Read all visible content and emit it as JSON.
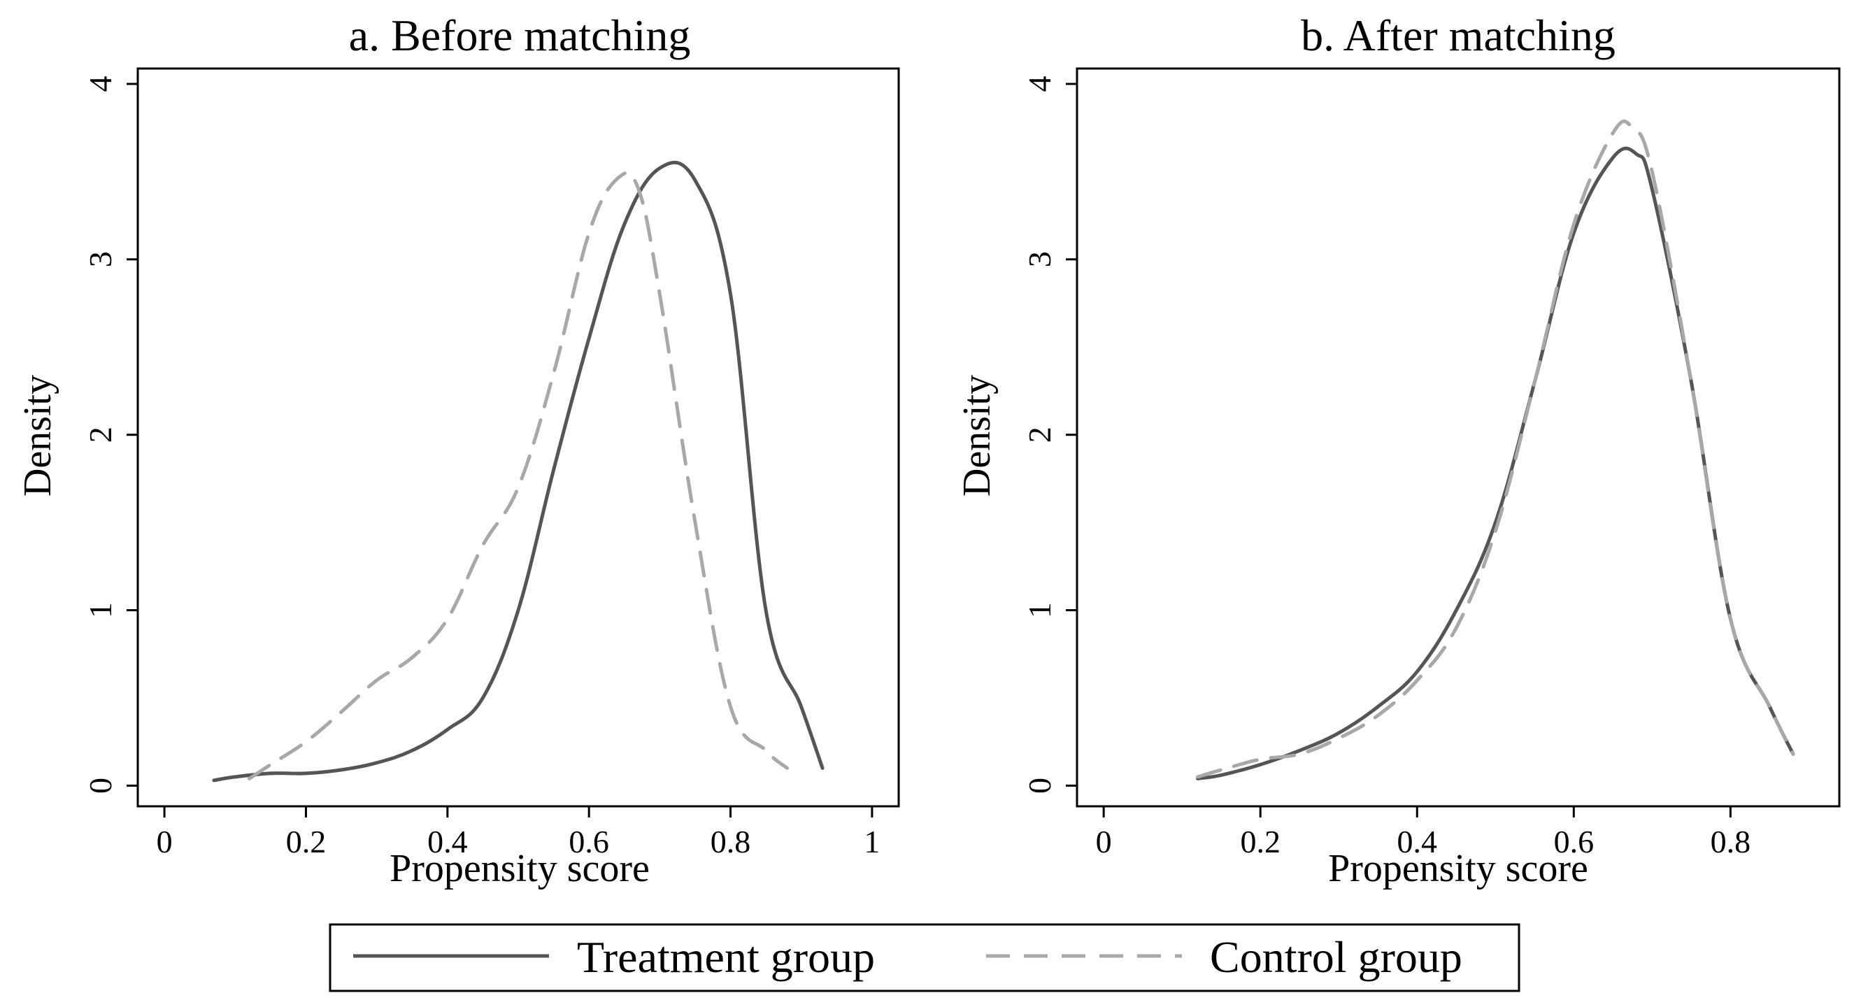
{
  "chart_data": [
    {
      "type": "line",
      "title": "a. Before matching",
      "xlabel": "Propensity score",
      "ylabel": "Density",
      "xlim": [
        0,
        1
      ],
      "ylim": [
        0,
        4
      ],
      "xticks": [
        "0",
        "0.2",
        "0.4",
        "0.6",
        "0.8",
        "1"
      ],
      "yticks": [
        "0",
        "1",
        "2",
        "3",
        "4"
      ],
      "grid": false,
      "series": [
        {
          "name": "Treatment group",
          "style": "solid",
          "color": "#555555",
          "x": [
            0.07,
            0.1,
            0.15,
            0.2,
            0.25,
            0.3,
            0.35,
            0.4,
            0.45,
            0.5,
            0.55,
            0.6,
            0.65,
            0.7,
            0.75,
            0.8,
            0.85,
            0.9,
            0.93
          ],
          "y": [
            0.03,
            0.05,
            0.07,
            0.07,
            0.09,
            0.13,
            0.2,
            0.32,
            0.5,
            1.0,
            1.8,
            2.55,
            3.2,
            3.52,
            3.45,
            2.8,
            1.0,
            0.45,
            0.1
          ]
        },
        {
          "name": "Control group",
          "style": "dashed",
          "color": "#a8a8a8",
          "x": [
            0.12,
            0.15,
            0.2,
            0.25,
            0.3,
            0.35,
            0.4,
            0.45,
            0.5,
            0.55,
            0.6,
            0.64,
            0.67,
            0.7,
            0.75,
            0.8,
            0.85,
            0.88
          ],
          "y": [
            0.04,
            0.12,
            0.25,
            0.42,
            0.6,
            0.73,
            0.95,
            1.37,
            1.7,
            2.35,
            3.15,
            3.46,
            3.4,
            2.8,
            1.5,
            0.45,
            0.2,
            0.1
          ]
        }
      ]
    },
    {
      "type": "line",
      "title": "b. After matching",
      "xlabel": "Propensity score",
      "ylabel": "Density",
      "xlim": [
        0,
        0.9
      ],
      "ylim": [
        0,
        4
      ],
      "xticks": [
        "0",
        "0.2",
        "0.4",
        "0.6",
        "0.8"
      ],
      "yticks": [
        "0",
        "1",
        "2",
        "3",
        "4"
      ],
      "grid": false,
      "series": [
        {
          "name": "Treatment group",
          "style": "solid",
          "color": "#555555",
          "x": [
            0.12,
            0.15,
            0.2,
            0.25,
            0.3,
            0.35,
            0.4,
            0.45,
            0.5,
            0.55,
            0.6,
            0.65,
            0.68,
            0.7,
            0.75,
            0.8,
            0.85,
            0.88
          ],
          "y": [
            0.04,
            0.06,
            0.12,
            0.2,
            0.3,
            0.45,
            0.65,
            1.0,
            1.5,
            2.3,
            3.15,
            3.58,
            3.6,
            3.4,
            2.3,
            0.95,
            0.45,
            0.18
          ]
        },
        {
          "name": "Control group",
          "style": "dashed",
          "color": "#a8a8a8",
          "x": [
            0.12,
            0.15,
            0.2,
            0.25,
            0.3,
            0.35,
            0.4,
            0.45,
            0.5,
            0.55,
            0.6,
            0.65,
            0.675,
            0.7,
            0.75,
            0.8,
            0.85,
            0.88
          ],
          "y": [
            0.05,
            0.09,
            0.15,
            0.18,
            0.27,
            0.4,
            0.6,
            0.9,
            1.45,
            2.3,
            3.2,
            3.72,
            3.75,
            3.5,
            2.3,
            0.95,
            0.45,
            0.18
          ]
        }
      ]
    }
  ],
  "legend": {
    "position": "bottom",
    "entries": [
      {
        "label": "Treatment group",
        "style": "solid",
        "color": "#555555"
      },
      {
        "label": "Control group",
        "style": "dashed",
        "color": "#a8a8a8"
      }
    ]
  }
}
